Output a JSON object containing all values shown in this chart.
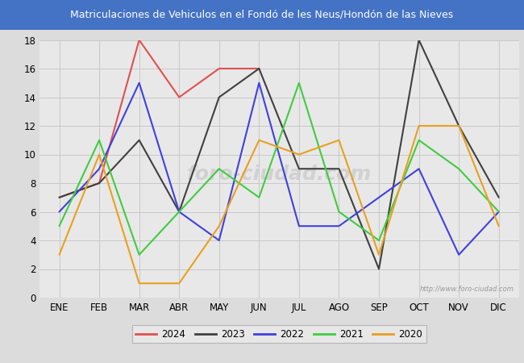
{
  "title": "Matriculaciones de Vehiculos en el Fondó de les Neus/Hondón de las Nieves",
  "title_bg_color": "#4472c4",
  "title_text_color": "#ffffff",
  "background_color": "#dcdcdc",
  "plot_bg_color": "#e8e8e8",
  "ylim": [
    0,
    18
  ],
  "months": [
    "ENE",
    "FEB",
    "MAR",
    "ABR",
    "MAY",
    "JUN",
    "JUL",
    "AGO",
    "SEP",
    "OCT",
    "NOV",
    "DIC"
  ],
  "series": {
    "2024": {
      "color": "#e05050",
      "data": [
        7,
        8,
        18,
        14,
        16,
        16,
        null,
        null,
        null,
        null,
        null,
        null
      ]
    },
    "2023": {
      "color": "#404040",
      "data": [
        7,
        8,
        11,
        6,
        14,
        16,
        9,
        9,
        2,
        18,
        12,
        7
      ]
    },
    "2022": {
      "color": "#4040dd",
      "data": [
        6,
        9,
        15,
        6,
        4,
        15,
        5,
        5,
        7,
        9,
        3,
        6
      ]
    },
    "2021": {
      "color": "#40cc40",
      "data": [
        5,
        11,
        3,
        6,
        9,
        7,
        15,
        6,
        4,
        11,
        9,
        6
      ]
    },
    "2020": {
      "color": "#e8a020",
      "data": [
        3,
        10,
        1,
        1,
        5,
        11,
        10,
        11,
        3,
        12,
        12,
        5
      ]
    }
  },
  "legend_order": [
    "2024",
    "2023",
    "2022",
    "2021",
    "2020"
  ],
  "watermark_text": "http://www.foro-ciudad.com",
  "watermark_big": "foro-ciudad.com",
  "grid_color": "#c8c8c8",
  "linewidth": 1.5
}
